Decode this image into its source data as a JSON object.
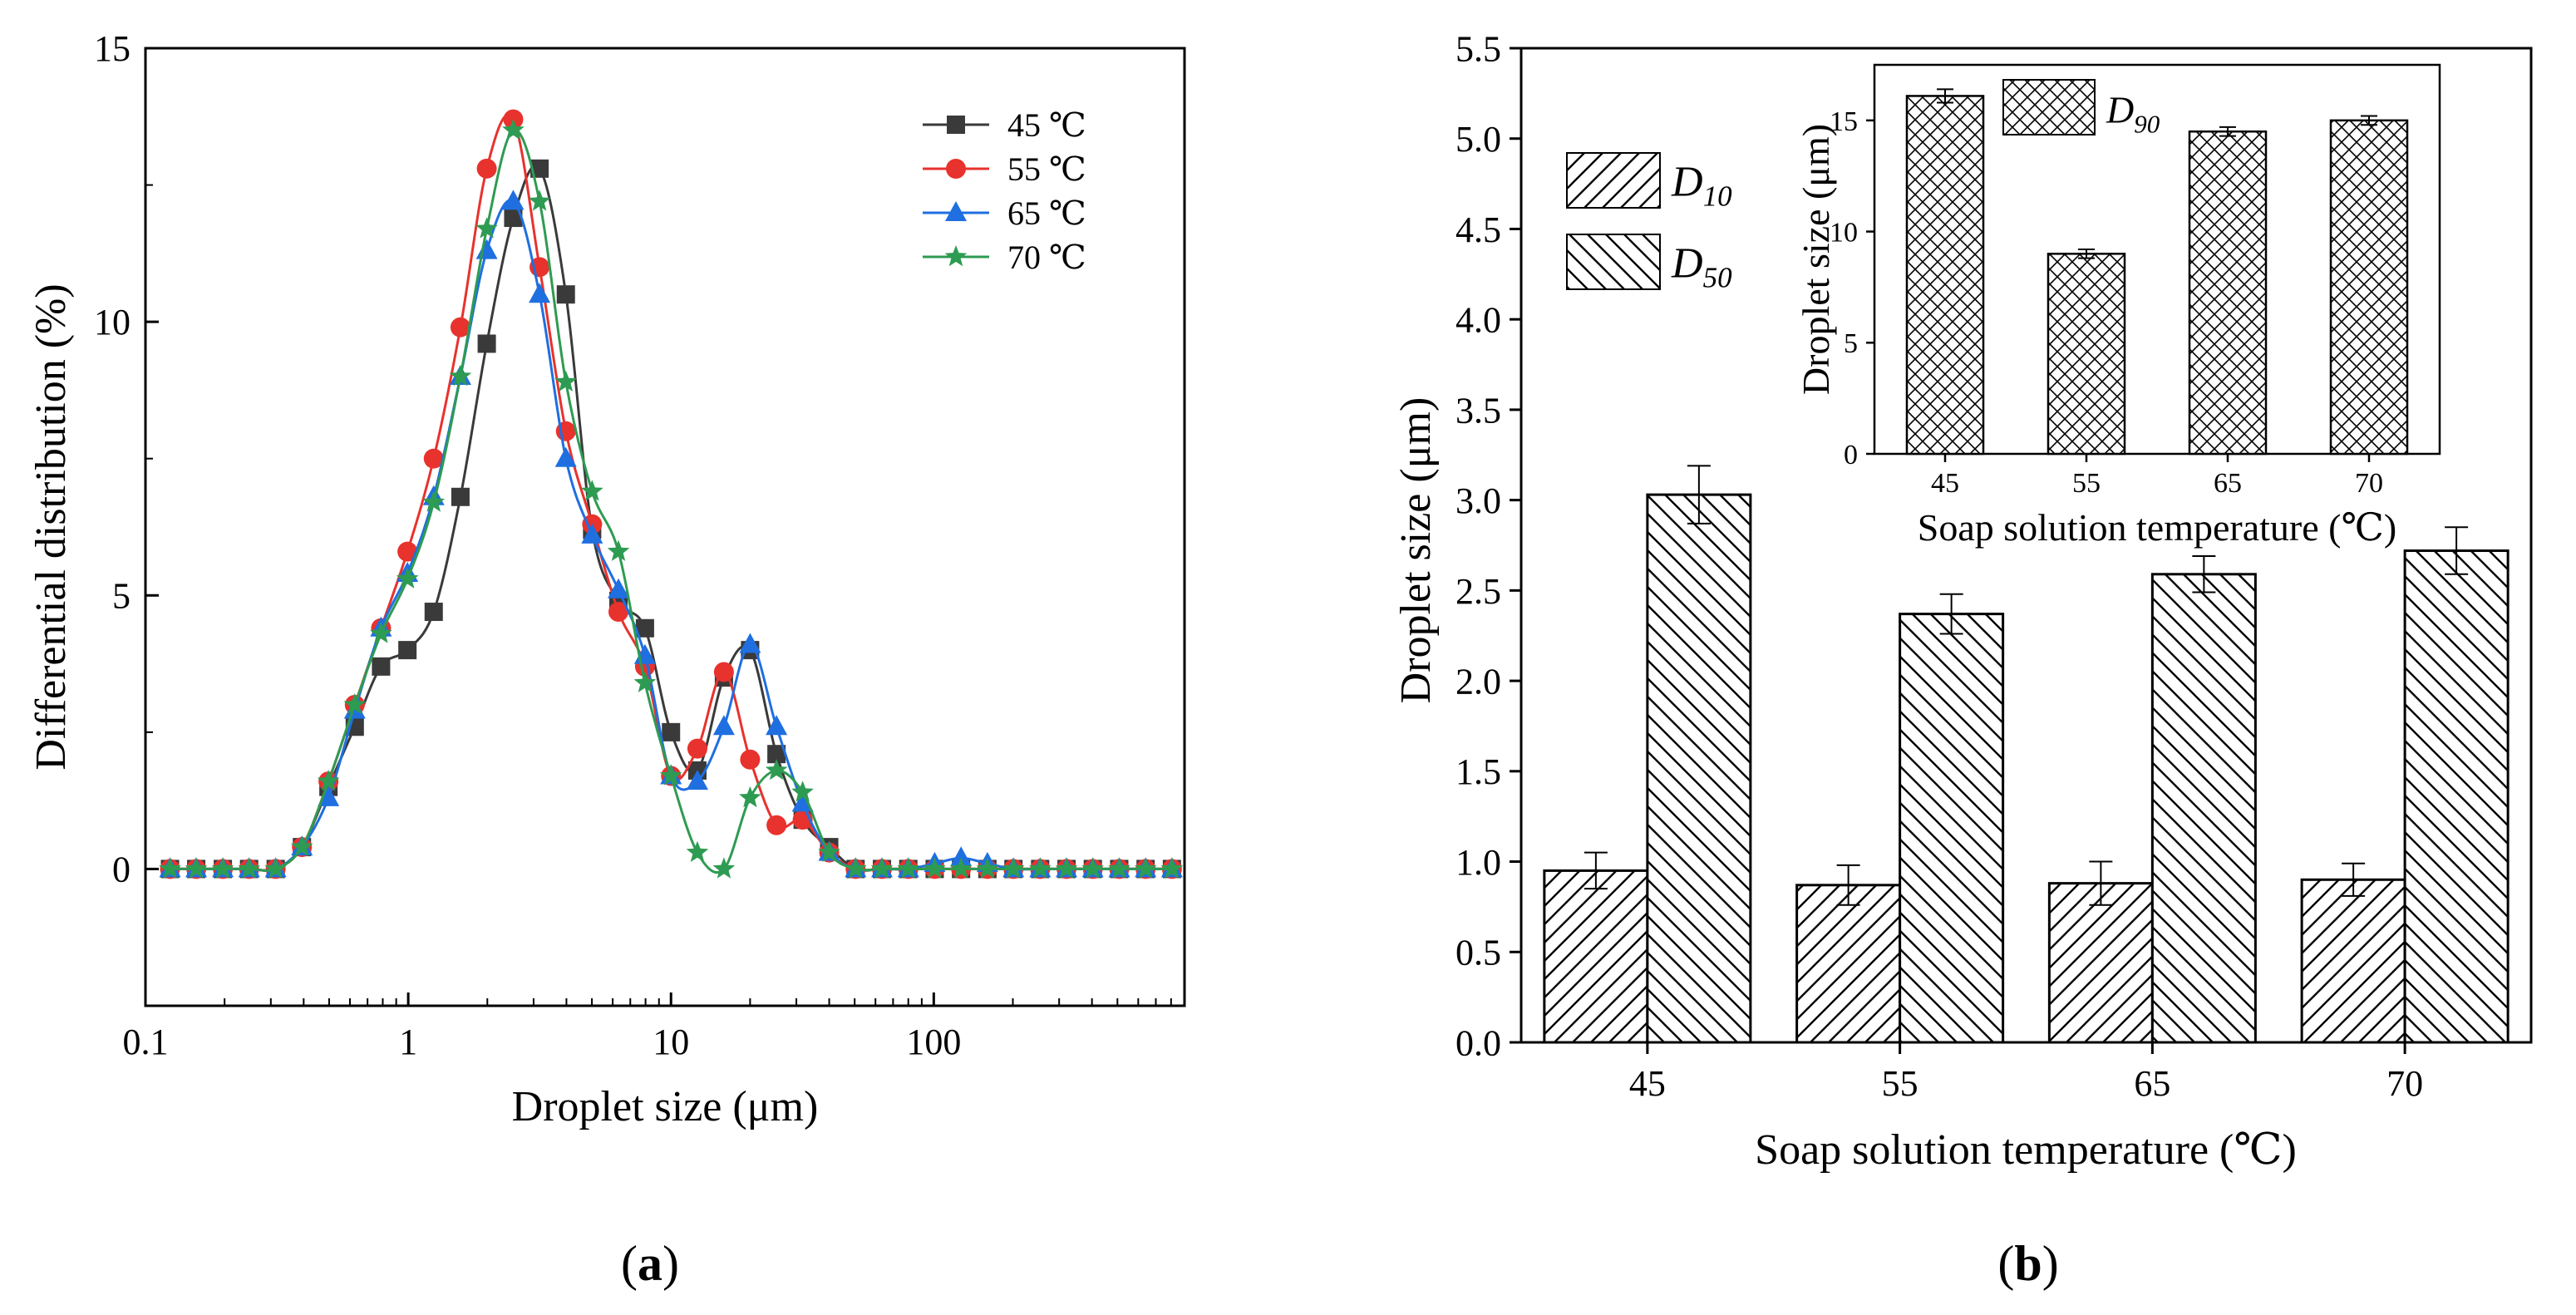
{
  "figure": {
    "captions": [
      {
        "open": "(",
        "letter": "a",
        "close": ")"
      },
      {
        "open": "(",
        "letter": "b",
        "close": ")"
      }
    ]
  },
  "colors": {
    "45": "#3a3a3a",
    "55": "#e8322d",
    "65": "#1f6fe0",
    "70": "#2e9b52"
  },
  "chart_data": [
    {
      "type": "line",
      "xlabel": "Droplet size (μm)",
      "ylabel": "Differential distribution (%)",
      "xscale": "log",
      "xlim": [
        0.1,
        900
      ],
      "ylim": [
        -2.5,
        15
      ],
      "xticks": [
        "0.1",
        "1",
        "10",
        "100"
      ],
      "xtick_values": [
        0.1,
        1,
        10,
        100
      ],
      "yticks": [
        "0",
        "5",
        "10",
        "15"
      ],
      "ytick_values": [
        0,
        5,
        10,
        15
      ],
      "legend_position": "top-right",
      "x": [
        0.124,
        0.156,
        0.197,
        0.248,
        0.313,
        0.394,
        0.497,
        0.626,
        0.788,
        0.993,
        1.25,
        1.58,
        1.99,
        2.51,
        3.16,
        3.98,
        5.01,
        6.31,
        7.96,
        10.0,
        12.6,
        15.9,
        20.0,
        25.2,
        31.7,
        40.0,
        50.4,
        63.5,
        80.0,
        100.8,
        127,
        160,
        201,
        254,
        320,
        403,
        508,
        640,
        806
      ],
      "series": [
        {
          "name": "45 ℃",
          "key": "45",
          "marker": "square",
          "values": [
            0,
            0,
            0,
            0,
            0,
            0.4,
            1.5,
            2.6,
            3.7,
            4.0,
            4.7,
            6.8,
            9.6,
            11.9,
            12.8,
            10.5,
            6.2,
            4.9,
            4.4,
            2.5,
            1.8,
            3.5,
            4.0,
            2.1,
            0.9,
            0.4,
            0,
            0,
            0,
            0,
            0,
            0,
            0,
            0,
            0,
            0,
            0,
            0,
            0
          ]
        },
        {
          "name": "55 ℃",
          "key": "55",
          "marker": "circle",
          "values": [
            0,
            0,
            0,
            0,
            0,
            0.4,
            1.6,
            3.0,
            4.4,
            5.8,
            7.5,
            9.9,
            12.8,
            13.7,
            11.0,
            8.0,
            6.3,
            4.7,
            3.7,
            1.7,
            2.2,
            3.6,
            2.0,
            0.8,
            0.9,
            0.3,
            0,
            0,
            0,
            0,
            0,
            0,
            0,
            0,
            0,
            0,
            0,
            0,
            0
          ]
        },
        {
          "name": "65 ℃",
          "key": "65",
          "marker": "triangle",
          "values": [
            0,
            0,
            0,
            0,
            0,
            0.4,
            1.3,
            2.9,
            4.4,
            5.4,
            6.8,
            9.0,
            11.3,
            12.2,
            10.5,
            7.5,
            6.1,
            5.1,
            3.9,
            1.7,
            1.6,
            2.6,
            4.1,
            2.6,
            1.2,
            0.3,
            0,
            0,
            0,
            0.1,
            0.2,
            0.1,
            0,
            0,
            0,
            0,
            0,
            0,
            0
          ]
        },
        {
          "name": "70 ℃",
          "key": "70",
          "marker": "star",
          "values": [
            0,
            0,
            0,
            0,
            0,
            0.4,
            1.6,
            3.0,
            4.3,
            5.3,
            6.7,
            9.0,
            11.7,
            13.5,
            12.2,
            8.9,
            6.9,
            5.8,
            3.4,
            1.7,
            0.3,
            0,
            1.3,
            1.8,
            1.4,
            0.3,
            0,
            0,
            0,
            0,
            0,
            0,
            0,
            0,
            0,
            0,
            0,
            0,
            0
          ]
        }
      ]
    },
    {
      "type": "bar",
      "xlabel": "Soap solution temperature (℃)",
      "ylabel": "Droplet size (μm)",
      "categories": [
        "45",
        "55",
        "65",
        "70"
      ],
      "ylim": [
        0,
        5.5
      ],
      "yticks": [
        "0.0",
        "0.5",
        "1.0",
        "1.5",
        "2.0",
        "2.5",
        "3.0",
        "3.5",
        "4.0",
        "4.5",
        "5.0",
        "5.5"
      ],
      "ytick_values": [
        0,
        0.5,
        1.0,
        1.5,
        2.0,
        2.5,
        3.0,
        3.5,
        4.0,
        4.5,
        5.0,
        5.5
      ],
      "legend_position": "top-left",
      "series": [
        {
          "name_main": "D",
          "name_sub": "10",
          "pattern": "diag-up",
          "values": [
            0.95,
            0.87,
            0.88,
            0.9
          ],
          "errors": [
            0.1,
            0.11,
            0.12,
            0.09
          ]
        },
        {
          "name_main": "D",
          "name_sub": "50",
          "pattern": "diag-down",
          "values": [
            3.03,
            2.37,
            2.59,
            2.72
          ],
          "errors": [
            0.16,
            0.11,
            0.1,
            0.13
          ]
        }
      ]
    },
    {
      "type": "bar",
      "inset": true,
      "xlabel": "Soap solution temperature (℃)",
      "ylabel": "Droplet size (μm)",
      "categories": [
        "45",
        "55",
        "65",
        "70"
      ],
      "ylim": [
        0,
        17.5
      ],
      "yticks": [
        "0",
        "5",
        "10",
        "15"
      ],
      "ytick_values": [
        0,
        5,
        10,
        15
      ],
      "legend_position": "top-left",
      "series": [
        {
          "name_main": "D",
          "name_sub": "90",
          "pattern": "crosshatch",
          "values": [
            16.1,
            9.0,
            14.5,
            15.0
          ],
          "errors": [
            0.3,
            0.2,
            0.2,
            0.2
          ]
        }
      ]
    }
  ]
}
